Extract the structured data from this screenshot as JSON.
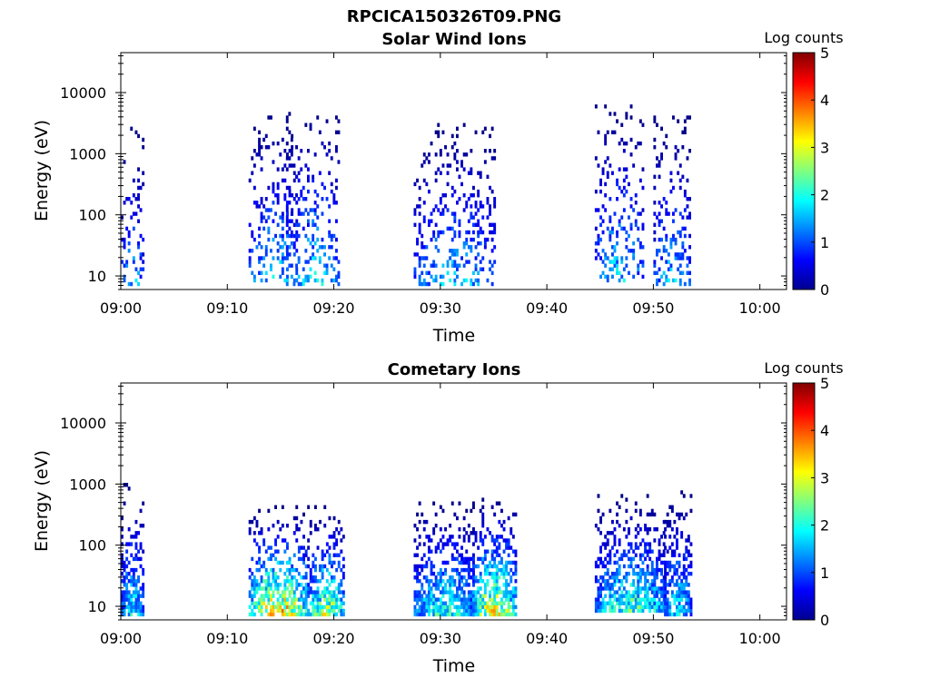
{
  "figure_title": "RPCICA150326T09.PNG",
  "colorbar": {
    "label": "Log counts",
    "range": [
      0,
      5
    ],
    "ticks": [
      "0",
      "1",
      "2",
      "3",
      "4",
      "5"
    ],
    "colormap": "jet"
  },
  "chart_data": [
    {
      "type": "heatmap",
      "title": "Solar Wind Ions",
      "xlabel": "Time",
      "ylabel": "Energy (eV)",
      "x_ticks": [
        "09:00",
        "09:10",
        "09:20",
        "09:30",
        "09:40",
        "09:50",
        "10:00"
      ],
      "xlim_minutes": [
        0,
        62.5
      ],
      "y_scale": "log",
      "ylim": [
        6,
        45000
      ],
      "y_ticks": [
        "10",
        "100",
        "1000",
        "10000"
      ],
      "bursts": [
        {
          "t_start": 0.0,
          "t_end": 2.0,
          "e_low": 7,
          "e_high": 2500,
          "peak_log_counts": 1.8
        },
        {
          "t_start": 12.0,
          "t_end": 16.5,
          "e_low": 9,
          "e_high": 4000,
          "peak_log_counts": 2.0
        },
        {
          "t_start": 15.5,
          "t_end": 20.5,
          "e_low": 7,
          "e_high": 6000,
          "peak_log_counts": 2.1
        },
        {
          "t_start": 27.5,
          "t_end": 35.0,
          "e_low": 7,
          "e_high": 3000,
          "peak_log_counts": 1.9
        },
        {
          "t_start": 44.5,
          "t_end": 49.0,
          "e_low": 9,
          "e_high": 6000,
          "peak_log_counts": 2.0
        },
        {
          "t_start": 50.0,
          "t_end": 53.5,
          "e_low": 7,
          "e_high": 4000,
          "peak_log_counts": 1.9
        }
      ]
    },
    {
      "type": "heatmap",
      "title": "Cometary Ions",
      "xlabel": "Time",
      "ylabel": "Energy (eV)",
      "x_ticks": [
        "09:00",
        "09:10",
        "09:20",
        "09:30",
        "09:40",
        "09:50",
        "10:00"
      ],
      "xlim_minutes": [
        0,
        62.5
      ],
      "y_scale": "log",
      "ylim": [
        6,
        45000
      ],
      "y_ticks": [
        "10",
        "100",
        "1000",
        "10000"
      ],
      "bursts": [
        {
          "t_start": 0.0,
          "t_end": 2.0,
          "e_low": 7,
          "e_high": 1000,
          "peak_log_counts": 2.2
        },
        {
          "t_start": 12.0,
          "t_end": 17.5,
          "e_low": 7,
          "e_high": 400,
          "peak_log_counts": 4.0
        },
        {
          "t_start": 17.5,
          "t_end": 21.0,
          "e_low": 7,
          "e_high": 400,
          "peak_log_counts": 3.2
        },
        {
          "t_start": 27.5,
          "t_end": 33.0,
          "e_low": 7,
          "e_high": 500,
          "peak_log_counts": 2.5
        },
        {
          "t_start": 33.0,
          "t_end": 37.0,
          "e_low": 7,
          "e_high": 600,
          "peak_log_counts": 3.6
        },
        {
          "t_start": 44.5,
          "t_end": 51.0,
          "e_low": 9,
          "e_high": 600,
          "peak_log_counts": 2.6
        },
        {
          "t_start": 51.0,
          "t_end": 53.5,
          "e_low": 7,
          "e_high": 700,
          "peak_log_counts": 2.2
        }
      ]
    }
  ]
}
